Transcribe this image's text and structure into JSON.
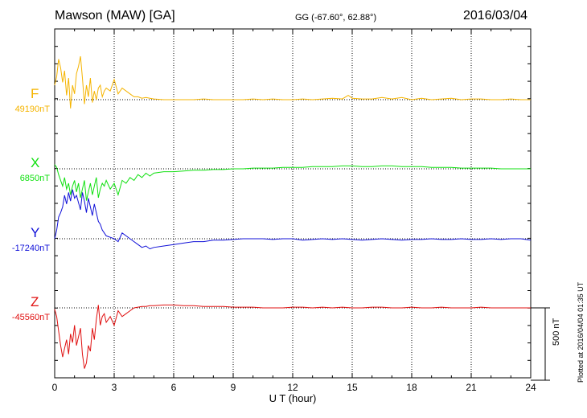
{
  "header": {
    "station": "Mawson (MAW)  [GA]",
    "coordinates": "GG (-67.60°,  62.88°)",
    "date": "2016/03/04"
  },
  "scale_label": "500 nT",
  "plotted_note": "Plotted at 2016/04/04 01:35 UT",
  "chart_data": {
    "type": "line",
    "title": "Mawson (MAW)  [GA]",
    "xlabel": "U T (hour)",
    "xlim": [
      0,
      24
    ],
    "xticks": [
      0,
      3,
      6,
      9,
      12,
      15,
      18,
      21,
      24
    ],
    "grid": true,
    "scale_bar_nT": 500,
    "series": [
      {
        "name": "F",
        "baseline": "49190nT",
        "color": "#f5b400",
        "x": [
          0,
          0.1,
          0.2,
          0.3,
          0.4,
          0.5,
          0.6,
          0.7,
          0.8,
          0.9,
          1.0,
          1.1,
          1.2,
          1.3,
          1.4,
          1.5,
          1.6,
          1.7,
          1.8,
          1.9,
          2.0,
          2.1,
          2.2,
          2.3,
          2.4,
          2.5,
          2.6,
          2.8,
          3.0,
          3.2,
          3.4,
          3.6,
          3.8,
          4.0,
          4.2,
          4.4,
          4.6,
          4.8,
          5.0,
          5.5,
          6.0,
          6.5,
          7.0,
          7.5,
          8.0,
          8.5,
          9.0,
          9.5,
          10.0,
          10.5,
          11.0,
          11.5,
          12.0,
          12.5,
          13.0,
          13.5,
          14.0,
          14.5,
          14.8,
          15.0,
          15.5,
          16.0,
          16.5,
          17.0,
          17.5,
          18.0,
          18.5,
          19.0,
          19.5,
          20.0,
          20.5,
          21.0,
          21.5,
          22.0,
          22.5,
          23.0,
          23.5,
          24.0
        ],
        "y": [
          100,
          160,
          280,
          220,
          120,
          200,
          30,
          150,
          -60,
          100,
          40,
          180,
          230,
          300,
          150,
          -30,
          100,
          20,
          150,
          -20,
          60,
          0,
          80,
          100,
          20,
          60,
          80,
          60,
          140,
          40,
          80,
          60,
          40,
          20,
          20,
          10,
          15,
          10,
          5,
          0,
          0,
          0,
          0,
          5,
          0,
          0,
          0,
          0,
          5,
          0,
          5,
          0,
          0,
          5,
          0,
          5,
          10,
          5,
          30,
          10,
          5,
          5,
          15,
          5,
          15,
          0,
          10,
          0,
          5,
          10,
          0,
          5,
          5,
          0,
          0,
          5,
          0,
          0
        ]
      },
      {
        "name": "X",
        "baseline": "6850nT",
        "color": "#10e010",
        "x": [
          0,
          0.1,
          0.2,
          0.3,
          0.4,
          0.5,
          0.6,
          0.7,
          0.8,
          0.9,
          1.0,
          1.1,
          1.2,
          1.3,
          1.4,
          1.5,
          1.6,
          1.7,
          1.8,
          1.9,
          2.0,
          2.1,
          2.2,
          2.3,
          2.4,
          2.5,
          2.6,
          2.8,
          3.0,
          3.2,
          3.4,
          3.6,
          3.8,
          4.0,
          4.2,
          4.4,
          4.6,
          4.8,
          5.0,
          5.5,
          6.0,
          6.5,
          7.0,
          7.5,
          8.0,
          8.5,
          9.0,
          9.5,
          10.0,
          10.5,
          11.0,
          11.5,
          12.0,
          12.5,
          13.0,
          13.5,
          14.0,
          14.5,
          15.0,
          15.5,
          16.0,
          16.5,
          17.0,
          17.5,
          18.0,
          18.5,
          19.0,
          19.5,
          20.0,
          20.5,
          21.0,
          21.5,
          22.0,
          22.5,
          23.0,
          23.5,
          24.0
        ],
        "y": [
          30,
          10,
          -40,
          -80,
          -120,
          -60,
          -140,
          -100,
          -180,
          -120,
          -80,
          -160,
          -100,
          -200,
          -140,
          -80,
          -220,
          -160,
          -100,
          -180,
          -120,
          -60,
          -200,
          -140,
          -100,
          -120,
          -80,
          -140,
          -100,
          -180,
          -80,
          -100,
          -60,
          -80,
          -40,
          -60,
          -30,
          -50,
          -30,
          -20,
          -20,
          -15,
          -10,
          -10,
          -5,
          -5,
          0,
          0,
          5,
          5,
          5,
          10,
          10,
          10,
          15,
          15,
          15,
          20,
          20,
          15,
          15,
          20,
          20,
          15,
          15,
          15,
          10,
          10,
          10,
          5,
          5,
          5,
          5,
          0,
          0,
          0,
          0
        ]
      },
      {
        "name": "Y",
        "baseline": "-17240nT",
        "color": "#1010d8",
        "x": [
          0,
          0.1,
          0.2,
          0.3,
          0.4,
          0.5,
          0.6,
          0.7,
          0.8,
          0.9,
          1.0,
          1.1,
          1.2,
          1.3,
          1.4,
          1.5,
          1.6,
          1.7,
          1.8,
          1.9,
          2.0,
          2.1,
          2.2,
          2.3,
          2.4,
          2.5,
          2.6,
          2.8,
          3.0,
          3.2,
          3.4,
          3.6,
          3.8,
          4.0,
          4.2,
          4.4,
          4.6,
          4.8,
          5.0,
          5.5,
          6.0,
          6.5,
          7.0,
          7.5,
          8.0,
          8.5,
          9.0,
          9.5,
          10.0,
          10.5,
          11.0,
          11.5,
          12.0,
          12.5,
          13.0,
          13.5,
          14.0,
          14.5,
          15.0,
          15.5,
          16.0,
          16.5,
          17.0,
          17.5,
          18.0,
          18.5,
          19.0,
          19.5,
          20.0,
          20.5,
          21.0,
          21.5,
          22.0,
          22.5,
          23.0,
          23.5,
          24.0
        ],
        "y": [
          0,
          60,
          150,
          180,
          220,
          300,
          240,
          320,
          260,
          340,
          280,
          300,
          250,
          200,
          320,
          260,
          180,
          280,
          220,
          160,
          240,
          180,
          120,
          100,
          60,
          40,
          20,
          10,
          0,
          -20,
          40,
          20,
          0,
          -20,
          -40,
          -60,
          -50,
          -70,
          -60,
          -50,
          -40,
          -30,
          -20,
          -20,
          -10,
          -10,
          -5,
          0,
          0,
          0,
          -5,
          0,
          0,
          -10,
          -5,
          0,
          -5,
          0,
          -5,
          -10,
          -5,
          0,
          -5,
          -10,
          -5,
          -5,
          0,
          -5,
          -5,
          0,
          -5,
          -5,
          0,
          -5,
          0,
          0,
          -10
        ]
      },
      {
        "name": "Z",
        "baseline": "-45560nT",
        "color": "#e01010",
        "x": [
          0,
          0.1,
          0.2,
          0.3,
          0.4,
          0.5,
          0.6,
          0.7,
          0.8,
          0.9,
          1.0,
          1.1,
          1.2,
          1.3,
          1.4,
          1.5,
          1.6,
          1.7,
          1.8,
          1.9,
          2.0,
          2.1,
          2.2,
          2.3,
          2.4,
          2.5,
          2.6,
          2.8,
          3.0,
          3.2,
          3.4,
          3.6,
          3.8,
          4.0,
          4.2,
          4.4,
          4.6,
          4.8,
          5.0,
          5.5,
          6.0,
          6.5,
          7.0,
          7.5,
          8.0,
          8.5,
          9.0,
          9.5,
          10.0,
          10.5,
          11.0,
          11.5,
          12.0,
          12.5,
          13.0,
          13.5,
          14.0,
          14.5,
          15.0,
          15.5,
          16.0,
          16.5,
          17.0,
          17.5,
          18.0,
          18.5,
          19.0,
          19.5,
          20.0,
          20.5,
          21.0,
          21.5,
          22.0,
          22.5,
          23.0,
          23.5,
          24.0
        ],
        "y": [
          -10,
          -60,
          -160,
          -260,
          -340,
          -280,
          -220,
          -320,
          -180,
          -240,
          -120,
          -260,
          -200,
          -140,
          -320,
          -420,
          -380,
          -260,
          -300,
          -140,
          -220,
          -80,
          20,
          -120,
          -60,
          -40,
          -100,
          -60,
          -120,
          -20,
          -60,
          -40,
          -20,
          0,
          5,
          10,
          10,
          15,
          15,
          20,
          20,
          15,
          15,
          10,
          10,
          10,
          5,
          5,
          5,
          0,
          0,
          0,
          5,
          5,
          0,
          5,
          0,
          5,
          0,
          0,
          5,
          5,
          0,
          0,
          5,
          0,
          0,
          5,
          0,
          0,
          0,
          5,
          0,
          0,
          0,
          0,
          0
        ]
      }
    ]
  }
}
